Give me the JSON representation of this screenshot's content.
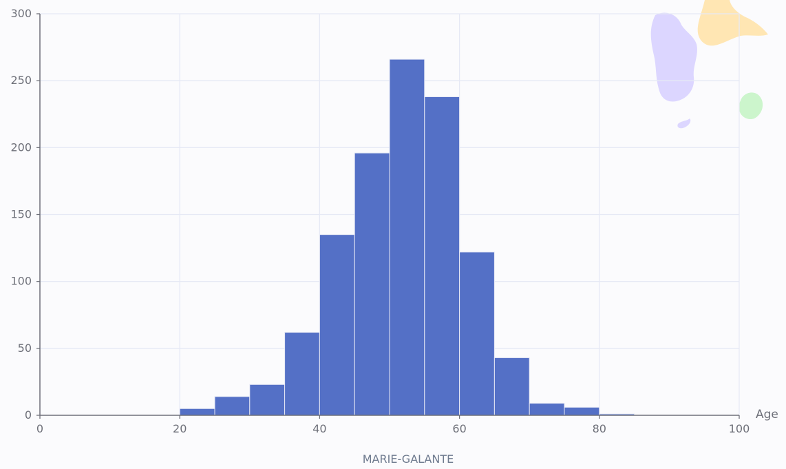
{
  "chart_data": {
    "type": "bar",
    "variant": "histogram",
    "bin_width": 5,
    "bins": [
      {
        "x0": 20,
        "x1": 25,
        "count": 5
      },
      {
        "x0": 25,
        "x1": 30,
        "count": 14
      },
      {
        "x0": 30,
        "x1": 35,
        "count": 23
      },
      {
        "x0": 35,
        "x1": 40,
        "count": 62
      },
      {
        "x0": 40,
        "x1": 45,
        "count": 135
      },
      {
        "x0": 45,
        "x1": 50,
        "count": 196
      },
      {
        "x0": 50,
        "x1": 55,
        "count": 266
      },
      {
        "x0": 55,
        "x1": 60,
        "count": 238
      },
      {
        "x0": 60,
        "x1": 65,
        "count": 122
      },
      {
        "x0": 65,
        "x1": 70,
        "count": 43
      },
      {
        "x0": 70,
        "x1": 75,
        "count": 9
      },
      {
        "x0": 75,
        "x1": 80,
        "count": 6
      },
      {
        "x0": 80,
        "x1": 85,
        "count": 1
      }
    ],
    "xlabel": "Age",
    "ylabel": "",
    "caption": "MARIE-GALANTE",
    "xlim": [
      0,
      100
    ],
    "ylim": [
      0,
      300
    ],
    "x_ticks": [
      "0",
      "20",
      "40",
      "60",
      "80",
      "100"
    ],
    "y_ticks": [
      "0",
      "50",
      "100",
      "150",
      "200",
      "250",
      "300"
    ],
    "grid": true,
    "colors": {
      "bar": "#5470c6",
      "bar_border": "#e6e9f5",
      "grid": "#e6e9f5",
      "axis": "#6e7079",
      "map_guadeloupe": "#dcd6ff",
      "map_grande_terre": "#ffe6b3",
      "map_marie_galante": "#ccf5cc"
    },
    "inset_map": {
      "icon": "guadeloupe-map-icon",
      "highlighted_region": "marie-galante"
    }
  }
}
